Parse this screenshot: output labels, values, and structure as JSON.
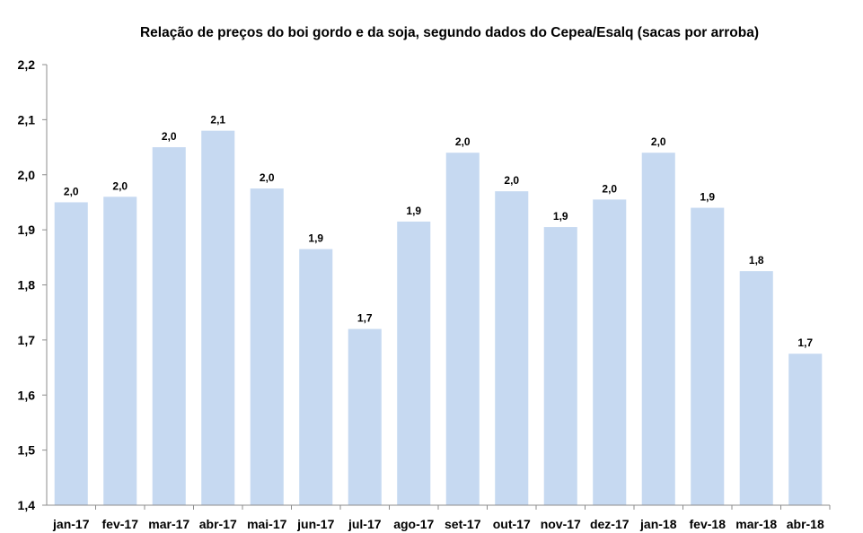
{
  "chart_data": {
    "type": "bar",
    "title": "Relação de preços do boi gordo e da soja, segundo dados do Cepea/Esalq (sacas por arroba)",
    "xlabel": "",
    "ylabel": "",
    "ylim": [
      1.4,
      2.2
    ],
    "yticks": [
      "1,4",
      "1,5",
      "1,6",
      "1,7",
      "1,8",
      "1,9",
      "2,0",
      "2,1",
      "2,2"
    ],
    "grid": false,
    "legend": "none",
    "bar_color": "#c6d9f1",
    "categories": [
      "jan-17",
      "fev-17",
      "mar-17",
      "abr-17",
      "mai-17",
      "jun-17",
      "jul-17",
      "ago-17",
      "set-17",
      "out-17",
      "nov-17",
      "dez-17",
      "jan-18",
      "fev-18",
      "mar-18",
      "abr-18"
    ],
    "values": [
      1.95,
      1.96,
      2.05,
      2.08,
      1.975,
      1.865,
      1.72,
      1.915,
      2.04,
      1.97,
      1.905,
      1.955,
      2.04,
      1.94,
      1.825,
      1.675
    ],
    "data_labels": [
      "2,0",
      "2,0",
      "2,0",
      "2,1",
      "2,0",
      "1,9",
      "1,7",
      "1,9",
      "2,0",
      "2,0",
      "1,9",
      "2,0",
      "2,0",
      "1,9",
      "1,8",
      "1,7"
    ]
  }
}
